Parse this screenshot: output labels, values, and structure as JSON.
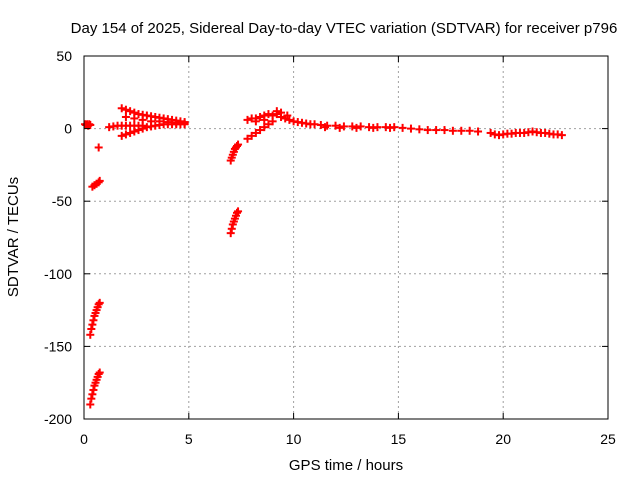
{
  "chart_data": {
    "type": "scatter",
    "title": "Day 154 of 2025, Sidereal Day-to-day VTEC variation (SDTVAR) for receiver p796",
    "xlabel": "GPS time / hours",
    "ylabel": "SDTVAR / TECUs",
    "xlim": [
      0,
      25
    ],
    "ylim": [
      -200,
      50
    ],
    "xticks": [
      0,
      5,
      10,
      15,
      20,
      25
    ],
    "yticks": [
      50,
      0,
      -50,
      -100,
      -150,
      -200
    ],
    "xtick_labels": [
      "0",
      "5",
      "10",
      "15",
      "20",
      "25"
    ],
    "ytick_labels": [
      "50",
      "0",
      "-50",
      "-100",
      "-150",
      "-200"
    ],
    "grid": true,
    "marker": "plus",
    "color": "#ff0000",
    "series": [
      {
        "name": "SDTVAR",
        "points": [
          [
            0.05,
            3
          ],
          [
            0.1,
            2.5
          ],
          [
            0.15,
            3
          ],
          [
            0.2,
            2
          ],
          [
            0.25,
            3
          ],
          [
            0.3,
            2.5
          ],
          [
            0.7,
            -13
          ],
          [
            0.4,
            -40
          ],
          [
            0.5,
            -39
          ],
          [
            0.6,
            -38
          ],
          [
            0.7,
            -37
          ],
          [
            0.75,
            -36
          ],
          [
            0.3,
            -142
          ],
          [
            0.35,
            -138
          ],
          [
            0.4,
            -135
          ],
          [
            0.45,
            -132
          ],
          [
            0.5,
            -129
          ],
          [
            0.55,
            -127
          ],
          [
            0.6,
            -125
          ],
          [
            0.65,
            -123
          ],
          [
            0.7,
            -121
          ],
          [
            0.75,
            -120
          ],
          [
            0.3,
            -190
          ],
          [
            0.35,
            -186
          ],
          [
            0.4,
            -183
          ],
          [
            0.45,
            -180
          ],
          [
            0.5,
            -177
          ],
          [
            0.55,
            -175
          ],
          [
            0.6,
            -173
          ],
          [
            0.65,
            -171
          ],
          [
            0.7,
            -169
          ],
          [
            0.75,
            -168
          ],
          [
            1.2,
            1
          ],
          [
            1.4,
            1.5
          ],
          [
            1.6,
            2
          ],
          [
            1.8,
            2
          ],
          [
            2.0,
            2
          ],
          [
            2.2,
            2
          ],
          [
            2.4,
            2
          ],
          [
            2.6,
            2
          ],
          [
            2.8,
            2
          ],
          [
            1.8,
            14
          ],
          [
            2.0,
            13
          ],
          [
            2.2,
            12
          ],
          [
            2.4,
            11
          ],
          [
            2.6,
            10
          ],
          [
            2.8,
            9.5
          ],
          [
            3.0,
            9
          ],
          [
            3.2,
            8.5
          ],
          [
            3.4,
            8
          ],
          [
            3.6,
            7.5
          ],
          [
            3.8,
            7
          ],
          [
            4.0,
            6.5
          ],
          [
            4.2,
            6
          ],
          [
            4.4,
            5.5
          ],
          [
            4.6,
            5
          ],
          [
            4.8,
            4.5
          ],
          [
            1.8,
            -5
          ],
          [
            2.0,
            -4
          ],
          [
            2.2,
            -3
          ],
          [
            2.4,
            -2
          ],
          [
            2.6,
            -1
          ],
          [
            2.8,
            0
          ],
          [
            3.0,
            1
          ],
          [
            3.2,
            1.5
          ],
          [
            3.4,
            2
          ],
          [
            3.6,
            2.5
          ],
          [
            3.8,
            3
          ],
          [
            4.0,
            3
          ],
          [
            4.2,
            3
          ],
          [
            4.4,
            3
          ],
          [
            4.6,
            3
          ],
          [
            4.8,
            3
          ],
          [
            2.0,
            8
          ],
          [
            2.4,
            7
          ],
          [
            2.8,
            6
          ],
          [
            3.2,
            5
          ],
          [
            3.6,
            5
          ],
          [
            4.0,
            4.5
          ],
          [
            4.4,
            4
          ],
          [
            4.8,
            3.5
          ],
          [
            7.0,
            -22
          ],
          [
            7.05,
            -20
          ],
          [
            7.1,
            -18
          ],
          [
            7.15,
            -16
          ],
          [
            7.2,
            -14
          ],
          [
            7.25,
            -13
          ],
          [
            7.3,
            -12
          ],
          [
            7.35,
            -11
          ],
          [
            7.0,
            -72
          ],
          [
            7.05,
            -69
          ],
          [
            7.1,
            -66
          ],
          [
            7.15,
            -64
          ],
          [
            7.2,
            -62
          ],
          [
            7.25,
            -60
          ],
          [
            7.3,
            -58
          ],
          [
            7.35,
            -57
          ],
          [
            7.8,
            6
          ],
          [
            8.0,
            7
          ],
          [
            8.2,
            7
          ],
          [
            8.4,
            8
          ],
          [
            8.6,
            9
          ],
          [
            8.8,
            10
          ],
          [
            9.0,
            9
          ],
          [
            9.2,
            10
          ],
          [
            9.4,
            8
          ],
          [
            9.6,
            7
          ],
          [
            7.8,
            -7
          ],
          [
            8.0,
            -5
          ],
          [
            8.2,
            -3
          ],
          [
            8.4,
            -1
          ],
          [
            8.6,
            1
          ],
          [
            8.8,
            3
          ],
          [
            9.0,
            5
          ],
          [
            8.2,
            5
          ],
          [
            8.6,
            6
          ],
          [
            9.2,
            12
          ],
          [
            9.4,
            11
          ],
          [
            9.7,
            9
          ],
          [
            9.8,
            6
          ],
          [
            10.0,
            5
          ],
          [
            10.2,
            4.5
          ],
          [
            10.4,
            4
          ],
          [
            10.6,
            3.5
          ],
          [
            10.8,
            3
          ],
          [
            11.0,
            3
          ],
          [
            11.3,
            2.5
          ],
          [
            11.6,
            2
          ],
          [
            12.0,
            2
          ],
          [
            12.4,
            1.5
          ],
          [
            12.8,
            1.5
          ],
          [
            13.2,
            1.5
          ],
          [
            13.6,
            1
          ],
          [
            14.0,
            1
          ],
          [
            14.4,
            1
          ],
          [
            14.8,
            1
          ],
          [
            15.2,
            0.5
          ],
          [
            11.5,
            1
          ],
          [
            12.2,
            0.5
          ],
          [
            13.0,
            0.5
          ],
          [
            13.8,
            0.5
          ],
          [
            14.6,
            0.5
          ],
          [
            15.6,
            0
          ],
          [
            16.0,
            -0.5
          ],
          [
            16.4,
            -1
          ],
          [
            16.8,
            -1
          ],
          [
            17.2,
            -1
          ],
          [
            17.6,
            -1.5
          ],
          [
            18.0,
            -1.5
          ],
          [
            18.4,
            -1.5
          ],
          [
            18.8,
            -2
          ],
          [
            19.4,
            -3
          ],
          [
            19.6,
            -4
          ],
          [
            19.8,
            -4.5
          ],
          [
            20.0,
            -4
          ],
          [
            20.2,
            -3.5
          ],
          [
            20.4,
            -3.5
          ],
          [
            20.6,
            -3
          ],
          [
            20.8,
            -3
          ],
          [
            21.0,
            -3
          ],
          [
            21.2,
            -2.5
          ],
          [
            21.4,
            -2
          ],
          [
            21.6,
            -2.5
          ],
          [
            21.8,
            -3
          ],
          [
            22.0,
            -3
          ],
          [
            22.2,
            -3.5
          ],
          [
            22.4,
            -4
          ],
          [
            22.6,
            -4
          ],
          [
            22.8,
            -4.5
          ]
        ]
      }
    ]
  }
}
